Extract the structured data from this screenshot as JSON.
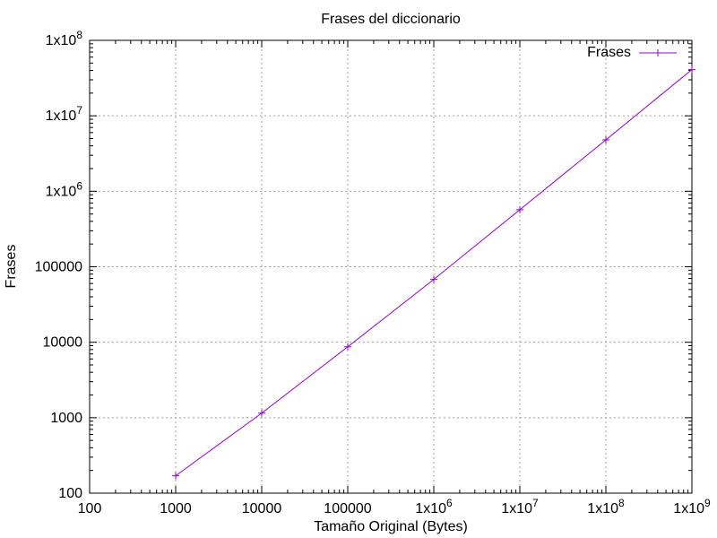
{
  "chart_data": {
    "type": "line",
    "title": "Frases del diccionario",
    "xlabel": "Tamaño Original (Bytes)",
    "ylabel": "Frases",
    "xscale": "log",
    "yscale": "log",
    "xlim": [
      100,
      1000000000
    ],
    "ylim": [
      100,
      100000000
    ],
    "grid": true,
    "legend_position": "top-right",
    "x_ticks": [
      {
        "value": 100,
        "base": "100",
        "exp": ""
      },
      {
        "value": 1000,
        "base": "1000",
        "exp": ""
      },
      {
        "value": 10000,
        "base": "10000",
        "exp": ""
      },
      {
        "value": 100000,
        "base": "100000",
        "exp": ""
      },
      {
        "value": 1000000,
        "base": "1x10",
        "exp": "6"
      },
      {
        "value": 10000000,
        "base": "1x10",
        "exp": "7"
      },
      {
        "value": 100000000,
        "base": "1x10",
        "exp": "8"
      },
      {
        "value": 1000000000,
        "base": "1x10",
        "exp": "9"
      }
    ],
    "y_ticks": [
      {
        "value": 100,
        "base": "100",
        "exp": ""
      },
      {
        "value": 1000,
        "base": "1000",
        "exp": ""
      },
      {
        "value": 10000,
        "base": "10000",
        "exp": ""
      },
      {
        "value": 100000,
        "base": "100000",
        "exp": ""
      },
      {
        "value": 1000000,
        "base": "1x10",
        "exp": "6"
      },
      {
        "value": 10000000,
        "base": "1x10",
        "exp": "7"
      },
      {
        "value": 100000000,
        "base": "1x10",
        "exp": "8"
      }
    ],
    "series": [
      {
        "name": "Frases",
        "color": "#9400d3",
        "marker": "plus",
        "x": [
          1000,
          10000,
          100000,
          1000000,
          10000000,
          100000000,
          1000000000
        ],
        "y": [
          170,
          1150,
          8700,
          68000,
          570000,
          4800000,
          41000000
        ]
      }
    ]
  }
}
